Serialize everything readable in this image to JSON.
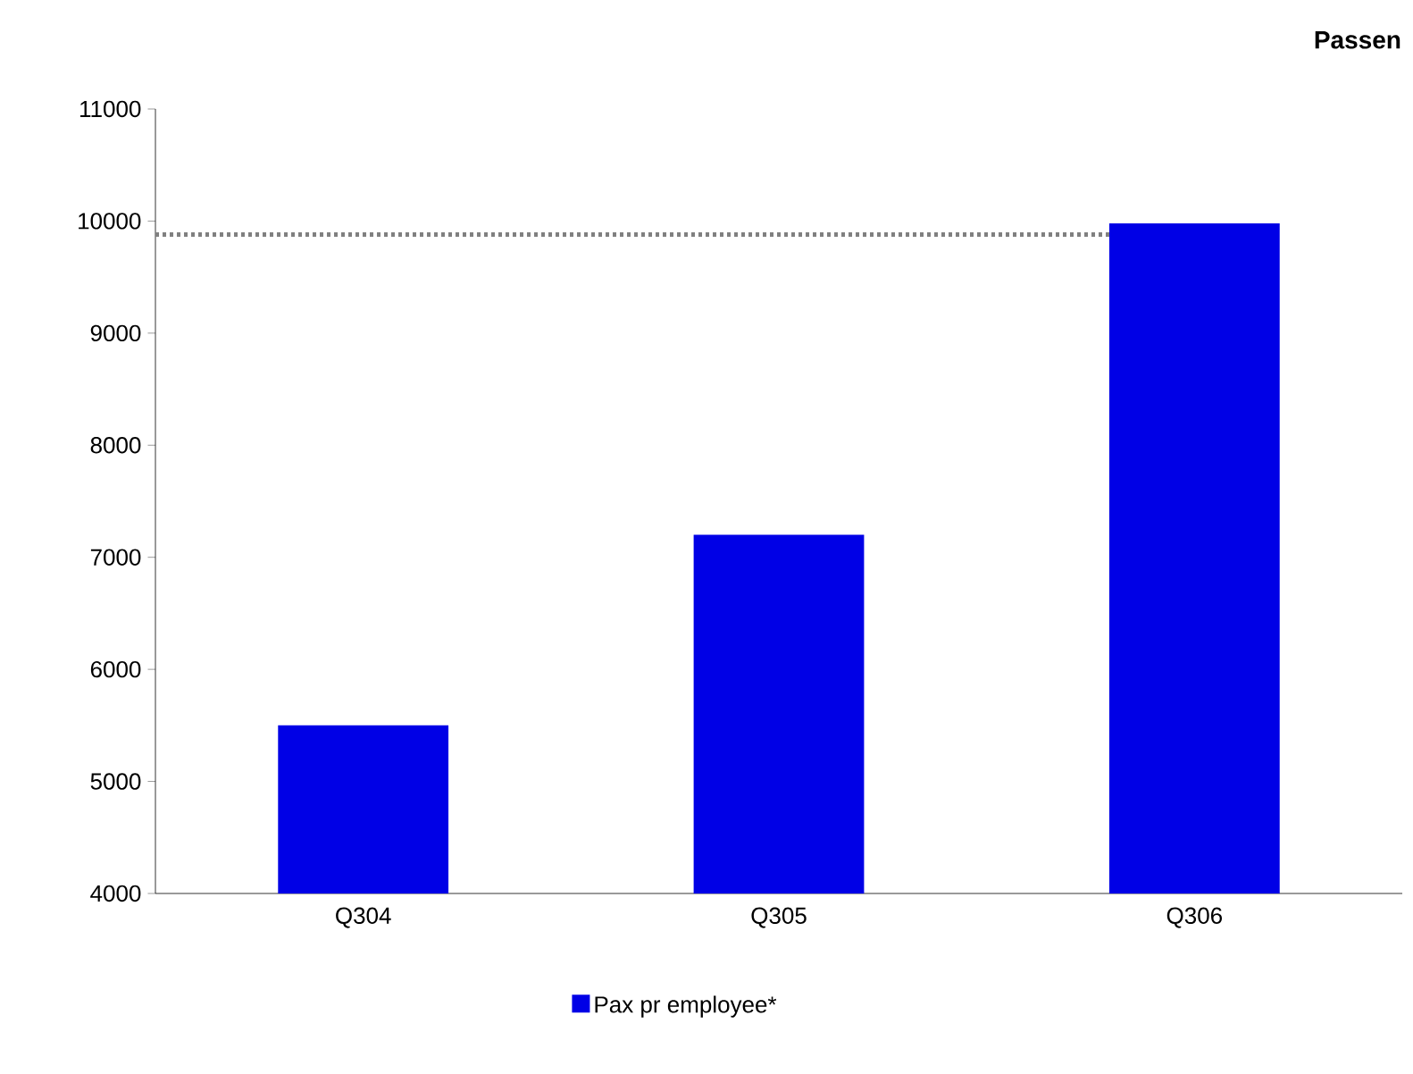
{
  "chart_data": {
    "type": "bar",
    "title": "Passen",
    "categories": [
      "Q304",
      "Q305",
      "Q306"
    ],
    "series": [
      {
        "name": "Pax pr employee*",
        "color": "#0000e6",
        "values": [
          5500,
          7200,
          9980
        ]
      }
    ],
    "ylim": [
      4000,
      11000
    ],
    "yticks": [
      4000,
      5000,
      6000,
      7000,
      8000,
      9000,
      10000,
      11000
    ],
    "ref_lines": [
      {
        "axis": "y",
        "value": 9880,
        "color": "#808080",
        "line_style": "dotted"
      }
    ],
    "grid": false,
    "legend": "bottom"
  }
}
